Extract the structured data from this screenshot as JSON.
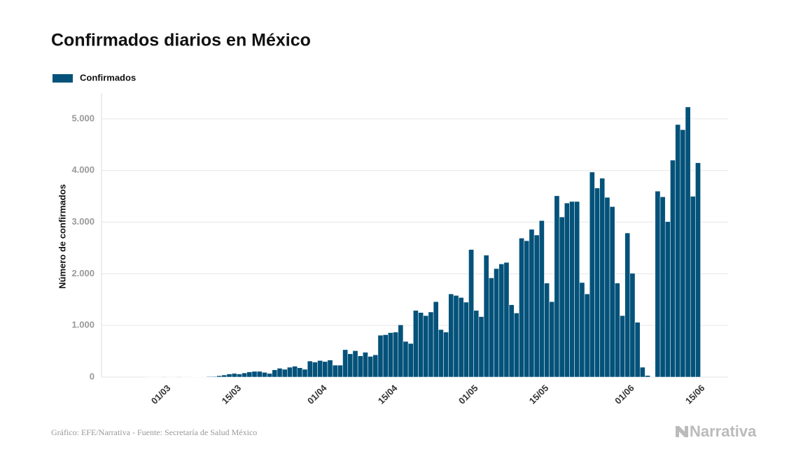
{
  "chart_data": {
    "type": "bar",
    "title": "Confirmados diarios en México",
    "y_label": "Número de confirmados",
    "source": "Gráfico: EFE/Narrativa - Fuente: Secretaría de Salud México",
    "brand": "Narrativa",
    "series": [
      {
        "name": "Confirmados",
        "color": "#04527a",
        "values": [
          0,
          0,
          0,
          0,
          0,
          0,
          0,
          1,
          1,
          2,
          0,
          1,
          2,
          0,
          3,
          1,
          4,
          5,
          7,
          11,
          12,
          26,
          40,
          60,
          70,
          60,
          80,
          100,
          110,
          110,
          90,
          70,
          140,
          170,
          150,
          190,
          210,
          180,
          150,
          310,
          290,
          320,
          300,
          330,
          230,
          230,
          530,
          450,
          510,
          410,
          480,
          400,
          430,
          810,
          820,
          860,
          870,
          1010,
          690,
          650,
          1290,
          1250,
          1190,
          1260,
          1460,
          920,
          870,
          1610,
          1580,
          1540,
          1450,
          2470,
          1290,
          1170,
          2360,
          1920,
          2100,
          2190,
          2220,
          1400,
          1240,
          2690,
          2640,
          2860,
          2750,
          3030,
          1820,
          1460,
          3510,
          3100,
          3370,
          3400,
          3400,
          1830,
          1610,
          3970,
          3660,
          3850,
          3480,
          3300,
          1820,
          1190,
          2790,
          2010,
          1060,
          190,
          30,
          0,
          3600,
          3490,
          3010,
          4200,
          4890,
          4790,
          5230,
          3500,
          4150
        ]
      }
    ],
    "categories": [
      null,
      null,
      null,
      null,
      null,
      null,
      null,
      null,
      null,
      null,
      "01/03",
      null,
      null,
      null,
      null,
      null,
      null,
      null,
      null,
      null,
      null,
      null,
      null,
      null,
      "15/03",
      null,
      null,
      null,
      null,
      null,
      null,
      null,
      null,
      null,
      null,
      null,
      null,
      null,
      null,
      null,
      null,
      "01/04",
      null,
      null,
      null,
      null,
      null,
      null,
      null,
      null,
      null,
      null,
      null,
      null,
      null,
      "15/04",
      null,
      null,
      null,
      null,
      null,
      null,
      null,
      null,
      null,
      null,
      null,
      null,
      null,
      null,
      null,
      "01/05",
      null,
      null,
      null,
      null,
      null,
      null,
      null,
      null,
      null,
      null,
      null,
      null,
      null,
      "15/05",
      null,
      null,
      null,
      null,
      null,
      null,
      null,
      null,
      null,
      null,
      null,
      null,
      null,
      null,
      null,
      null,
      "01/06",
      null,
      null,
      null,
      null,
      null,
      null,
      null,
      null,
      null,
      null,
      null,
      null,
      null,
      "15/06"
    ],
    "ylim": [
      0,
      5500
    ],
    "yticks": [
      0,
      {
        "value": 1000,
        "label": "1.000"
      },
      {
        "value": 2000,
        "label": "2.000"
      },
      {
        "value": 3000,
        "label": "3.000"
      },
      {
        "value": 4000,
        "label": "4.000"
      },
      {
        "value": 5000,
        "label": "5.000"
      }
    ],
    "grid": true
  }
}
